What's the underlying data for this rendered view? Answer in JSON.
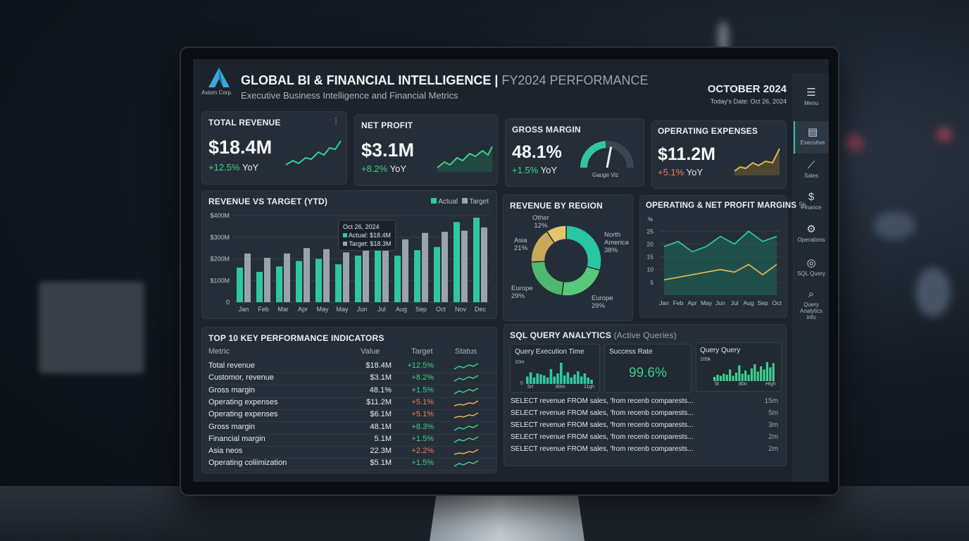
{
  "brand": {
    "name": "Axiom Corp."
  },
  "header": {
    "title": "GLOBAL BI & FINANCIAL INTELLIGENCE",
    "title_sep": "|",
    "title_suffix": "FY2024 PERFORMANCE",
    "subtitle": "Executive Business Intelligence and Financial Metrics",
    "period": "OCTOBER 2024",
    "today": "Today's Date: Oct 26, 2024"
  },
  "nav": {
    "items": [
      {
        "label": "Menu",
        "icon": "menu-icon"
      },
      {
        "label": "Executive",
        "icon": "document-icon",
        "active": true
      },
      {
        "label": "Sales",
        "icon": "chart-icon"
      },
      {
        "label": "Finance",
        "icon": "dollar-icon"
      },
      {
        "label": "Operations",
        "icon": "gears-icon"
      },
      {
        "label": "SQL Query",
        "icon": "database-icon"
      },
      {
        "label": "Query",
        "label2": "Analytics",
        "label3": "info",
        "icon": "search-icon"
      }
    ]
  },
  "kpis": [
    {
      "title": "TOTAL REVENUE",
      "value": "$18.4M",
      "change": "+12.5%",
      "suffix": "YoY",
      "trend": "up",
      "color": "#2fd0a4"
    },
    {
      "title": "NET PROFIT",
      "value": "$3.1M",
      "change": "+8.2%",
      "suffix": "YoY",
      "trend": "up",
      "color": "#3fcf8e"
    },
    {
      "title": "GROSS MARGIN",
      "value": "48.1%",
      "change": "+1.5%",
      "suffix": "YoY",
      "gauge_label": "Gauge Viz",
      "gauge_fraction": 0.481
    },
    {
      "title": "OPERATING EXPENSES",
      "value": "$11.2M",
      "change": "+5.1%",
      "suffix": "YoY",
      "trend": "warn",
      "color": "#e0b65a"
    }
  ],
  "revenue_chart": {
    "title": "REVENUE VS TARGET (YTD)",
    "legend": [
      "Actual",
      "Target"
    ],
    "tooltip": {
      "date": "Oct 26, 2024",
      "actual": "Actual: $18.4M",
      "target": "Target: $18.3M"
    },
    "yticks": [
      "$400M",
      "$300M",
      "$200M",
      "$100M",
      "0"
    ]
  },
  "region_chart": {
    "title": "REVENUE BY REGION",
    "labels": [
      {
        "name": "Other",
        "pct": "12%"
      },
      {
        "name": "North America",
        "pct": "38%"
      },
      {
        "name": "Asia",
        "pct": "21%"
      },
      {
        "name": "Europe",
        "pct": "29%"
      },
      {
        "name": "Europe",
        "pct": "29%"
      }
    ]
  },
  "margins_chart": {
    "title": "OPERATING & NET PROFIT MARGINS",
    "unit": "%",
    "y_unit": "%",
    "yticks": [
      "25",
      "20",
      "15",
      "10",
      "5"
    ]
  },
  "kpi_table": {
    "title": "TOP 10 KEY PERFORMANCE INDICATORS",
    "headers": [
      "Metric",
      "Value",
      "Target",
      "Status"
    ],
    "rows": [
      {
        "metric": "Total revenue",
        "value": "$18.4M",
        "target": "+12.5%",
        "tone": "pos"
      },
      {
        "metric": "Customor, revenue",
        "value": "$3.1M",
        "target": "+8.2%",
        "tone": "pos"
      },
      {
        "metric": "Gross margin",
        "value": "48.1%",
        "target": "+1.5%",
        "tone": "pos"
      },
      {
        "metric": "Operating expenses",
        "value": "$11.2M",
        "target": "+5.1%",
        "tone": "neg"
      },
      {
        "metric": "Operating expenses",
        "value": "$6.1M",
        "target": "+5.1%",
        "tone": "neg"
      },
      {
        "metric": "Gross margin",
        "value": "48.1M",
        "target": "+8.3%",
        "tone": "pos"
      },
      {
        "metric": "Financial margin",
        "value": "5.1M",
        "target": "+1.5%",
        "tone": "pos"
      },
      {
        "metric": "Asia neos",
        "value": "22.3M",
        "target": "+2.2%",
        "tone": "neg"
      },
      {
        "metric": "Operating coliimization",
        "value": "$5.1M",
        "target": "+1.5%",
        "tone": "pos"
      }
    ]
  },
  "sql": {
    "title": "SQL QUERY ANALYTICS",
    "title_suffix": "(Active Queries)",
    "exec_time": {
      "title": "Query Execution Time",
      "ytop": "10m",
      "ybot": "0",
      "x": [
        "5rt",
        "80m",
        "11gh"
      ]
    },
    "success": {
      "title": "Success Rate",
      "value": "99.6%"
    },
    "query": {
      "title": "Query Query",
      "ytop": "100k",
      "x": [
        "5t",
        "80n",
        "High"
      ]
    },
    "rows": [
      {
        "text": "SELECT revenue FROM sales, 'from recenb comparests...",
        "time": "15m"
      },
      {
        "text": "SELECT revenue FROM sales, 'from recenb comparests...",
        "time": "5m"
      },
      {
        "text": "SELECT revenue FROM sales, 'from recenb comparests...",
        "time": "3m"
      },
      {
        "text": "SELECT revenue FROM sales, 'from recenb comparests...",
        "time": "2m"
      },
      {
        "text": "SELECT revenue FROM sales, 'from recenb comparests...",
        "time": "2m"
      }
    ]
  },
  "chart_data": [
    {
      "type": "bar",
      "title": "REVENUE VS TARGET (YTD)",
      "categories": [
        "Jan",
        "Feb",
        "Mar",
        "Apr",
        "May",
        "May",
        "Jun",
        "Jul",
        "Aug",
        "Sep",
        "Oct",
        "Nov",
        "Dec"
      ],
      "series": [
        {
          "name": "Actual",
          "color": "#2fc7a0",
          "values": [
            160,
            140,
            165,
            190,
            200,
            175,
            215,
            240,
            215,
            240,
            255,
            370,
            390
          ]
        },
        {
          "name": "Target",
          "color": "#9aa2ab",
          "values": [
            225,
            205,
            225,
            250,
            245,
            230,
            245,
            265,
            290,
            320,
            325,
            330,
            345
          ]
        }
      ],
      "ylim": [
        0,
        400
      ]
    },
    {
      "type": "pie",
      "title": "REVENUE BY REGION",
      "categories": [
        "North America",
        "Europe",
        "Europe",
        "Asia",
        "Other"
      ],
      "values": [
        38,
        29,
        29,
        21,
        12
      ],
      "colors": [
        "#26c7a2",
        "#57c97a",
        "#57c97a",
        "#c9a85a",
        "#e5c46b"
      ]
    },
    {
      "type": "area",
      "title": "OPERATING & NET PROFIT MARGINS",
      "categories": [
        "Jan",
        "Feb",
        "Apr",
        "May",
        "Jun",
        "Jul",
        "Aug",
        "Sep",
        "Oct"
      ],
      "series": [
        {
          "name": "",
          "color": "#2fc7a0",
          "values": [
            19,
            21,
            17,
            19,
            23,
            20,
            25,
            21,
            23
          ]
        },
        {
          "name": "",
          "color": "#d9b45a",
          "values": [
            6,
            7,
            8,
            9,
            10,
            9,
            12,
            8,
            12
          ]
        }
      ],
      "ylim": [
        0,
        27
      ]
    }
  ]
}
